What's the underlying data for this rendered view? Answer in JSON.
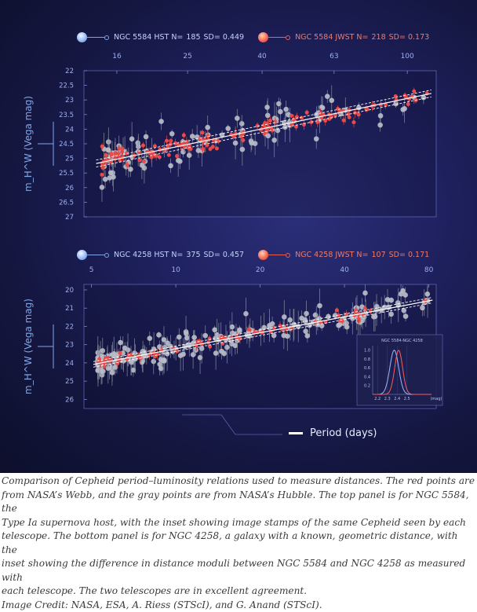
{
  "caption": {
    "lines": [
      "Comparison of Cepheid period–luminosity relations used to measure distances. The red points are",
      "from NASA’s Webb, and the gray points are from NASA’s Hubble. The top panel is for NGC 5584, the",
      "Type Ia supernova host, with the inset showing image stamps of the same Cepheid seen by each",
      "telescope. The bottom panel is for NGC 4258, a galaxy with a known, geometric distance, with the",
      "inset showing the difference in distance moduli between NGC 5584 and NGC 4258 as measured with",
      "each telescope. The two telescopes are in excellent agreement."
    ],
    "credit": "Image Credit: NASA, ESA, A. Riess (STScI), and G. Anand (STScI)."
  },
  "x_axis_title": "Period (days)",
  "colors": {
    "hst": "#b9bcc8",
    "jwst": "#ea4a4a",
    "fit": "#ffffff"
  },
  "chart_data": [
    {
      "type": "scatter",
      "title": "NGC 5584",
      "xlabel": "Period (days)",
      "xscale": "log",
      "xlim": [
        13,
        120
      ],
      "xticks": [
        16,
        25,
        40,
        63,
        100
      ],
      "ylabel": "m_H^W (Vega mag)",
      "ylim": [
        27,
        22
      ],
      "yticks": [
        22,
        22.5,
        23,
        23.5,
        24,
        24.5,
        25,
        25.5,
        26,
        26.5,
        27
      ],
      "fit": {
        "p1": 15,
        "m1": 25.1,
        "p2": 100,
        "m2": 22.95,
        "band": 0.12
      },
      "series": [
        {
          "name": "NGC 5584 HST",
          "n": 185,
          "sd": 0.449,
          "legend_label": "NGC 5584 HST N=",
          "n_text": "185",
          "sd_label": "SD= 0.449"
        },
        {
          "name": "NGC 5584 JWST",
          "n": 218,
          "sd": 0.173,
          "legend_label": "NGC 5584 JWST N=",
          "n_text": "218",
          "sd_label": "SD= 0.173"
        }
      ]
    },
    {
      "type": "scatter",
      "title": "NGC 4258",
      "xlabel": "Period (days)",
      "xscale": "log",
      "xlim": [
        4.7,
        85
      ],
      "xticks": [
        5,
        10,
        20,
        40,
        80
      ],
      "ylabel": "m_H^W (Vega mag)",
      "ylim": [
        26.5,
        19.7
      ],
      "yticks": [
        20,
        21,
        22,
        23,
        24,
        25,
        26
      ],
      "fit": {
        "p1": 5,
        "m1": 24.1,
        "p2": 80,
        "m2": 20.6,
        "band": 0.15
      },
      "series": [
        {
          "name": "NGC 4258 HST",
          "n": 375,
          "sd": 0.457,
          "legend_label": "NGC 4258 HST N=",
          "n_text": "375",
          "sd_label": "SD= 0.457"
        },
        {
          "name": "NGC 4258 JWST",
          "n": 107,
          "sd": 0.171,
          "legend_label": "NGC 4258 JWST N=",
          "n_text": "107",
          "sd_label": "SD= 0.171"
        }
      ],
      "inset": {
        "title": "NGC 5584-NGC 4258",
        "xlim": [
          2.15,
          2.75
        ],
        "xticks": [
          2.2,
          2.3,
          2.4,
          2.5
        ],
        "xunit": "(mag)",
        "ylim": [
          0,
          1.1
        ],
        "yticks": [
          0.2,
          0.4,
          0.6,
          0.8,
          1.0
        ],
        "hst_curve": {
          "mu": 2.37,
          "sigma": 0.045
        },
        "jwst_curve": {
          "mu": 2.415,
          "sigma": 0.04
        }
      }
    }
  ]
}
